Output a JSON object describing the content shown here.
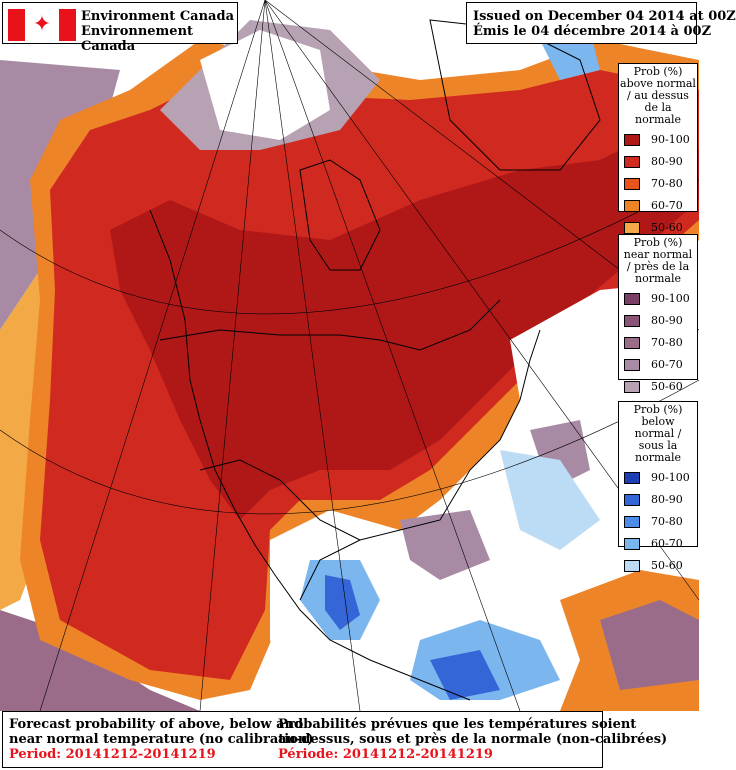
{
  "header": {
    "org_en": "Environment Canada",
    "org_fr": "Environnement Canada",
    "issued_en": "Issued on December 04 2014 at 00Z",
    "issued_fr": "Émis le 04 décembre 2014 à 00Z"
  },
  "legends": {
    "above": {
      "title_lines": [
        "Prob (%)",
        "above normal",
        "/ au dessus",
        "de la normale"
      ],
      "items": [
        {
          "range": "90-100",
          "color": "#b01818"
        },
        {
          "range": "80-90",
          "color": "#d02a20"
        },
        {
          "range": "70-80",
          "color": "#e8561c"
        },
        {
          "range": "60-70",
          "color": "#ee8428"
        },
        {
          "range": "50-60",
          "color": "#f3aa46"
        }
      ]
    },
    "near": {
      "title_lines": [
        "Prob (%)",
        "near normal",
        "/ près de la",
        "normale"
      ],
      "items": [
        {
          "range": "90-100",
          "color": "#7a3f66"
        },
        {
          "range": "80-90",
          "color": "#8a5476"
        },
        {
          "range": "70-80",
          "color": "#9a6c8a"
        },
        {
          "range": "60-70",
          "color": "#a98aa4"
        },
        {
          "range": "50-60",
          "color": "#b7a2b4"
        }
      ]
    },
    "below": {
      "title_lines": [
        "Prob (%)",
        "below normal /",
        "sous la normale"
      ],
      "items": [
        {
          "range": "90-100",
          "color": "#1c3fb5"
        },
        {
          "range": "80-90",
          "color": "#3466d8"
        },
        {
          "range": "70-80",
          "color": "#4b8de8"
        },
        {
          "range": "60-70",
          "color": "#7cb6ef"
        },
        {
          "range": "50-60",
          "color": "#bcdcf6"
        }
      ]
    }
  },
  "footer": {
    "en_line1": "Forecast probability of above, below and",
    "en_line2": "near normal temperature (no calibration)",
    "en_period": "Period: 20141212-20141219",
    "fr_line1": "Probabilités prévues que les températures soient",
    "fr_line2": "au-dessus, sous et près de la normale (non-calibrées)",
    "fr_period": "Période: 20141212-20141219"
  }
}
